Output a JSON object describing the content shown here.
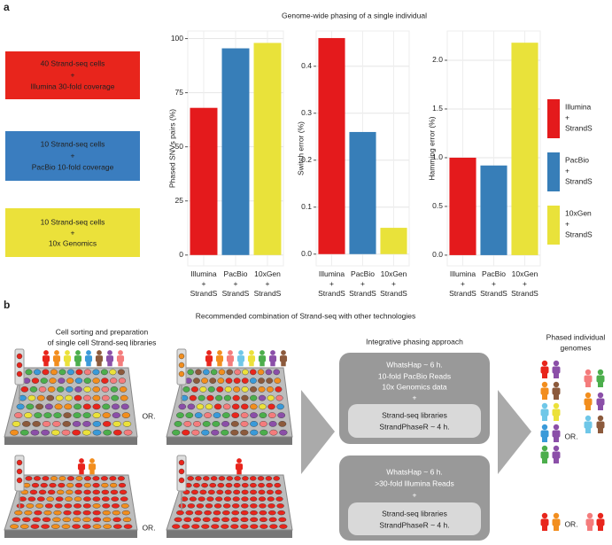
{
  "panel_a": {
    "label": "a",
    "title": "Genome-wide phasing of a single individual",
    "boxes": [
      [
        "40 Strand-seq cells",
        "+",
        "Illumina 30-fold coverage"
      ],
      [
        "10 Strand-seq cells",
        "+",
        "PacBio 10-fold coverage"
      ],
      [
        "10 Strand-seq cells",
        "+",
        "10x Genomics"
      ]
    ]
  },
  "chart_data": [
    {
      "type": "bar",
      "ylabel": "Phased SNVs pairs (%)",
      "categories": [
        [
          "Illumina",
          "+",
          "StrandS"
        ],
        [
          "PacBio",
          "+",
          "StrandS"
        ],
        [
          "10xGen",
          "+",
          "StrandS"
        ]
      ],
      "values": [
        68,
        95.5,
        98
      ],
      "colors": [
        "#e41a1c",
        "#377eb8",
        "#e9e23a"
      ],
      "ylim": [
        -5,
        103.5
      ],
      "yticks": [
        0,
        25,
        50,
        75,
        100
      ],
      "grid": true
    },
    {
      "type": "bar",
      "ylabel": "Switch error (%)",
      "categories": [
        [
          "Illumina",
          "+",
          "StrandS"
        ],
        [
          "PacBio",
          "+",
          "StrandS"
        ],
        [
          "10xGen",
          "+",
          "StrandS"
        ]
      ],
      "values": [
        0.46,
        0.26,
        0.056
      ],
      "colors": [
        "#e41a1c",
        "#377eb8",
        "#e9e23a"
      ],
      "ylim": [
        -0.025,
        0.475
      ],
      "yticks": [
        {
          "value": 0,
          "label": "0.0"
        },
        0.1,
        0.2,
        0.3,
        0.4
      ],
      "grid": true
    },
    {
      "type": "bar",
      "ylabel": "Hamming error (%)",
      "categories": [
        [
          "Illumina",
          "+",
          "StrandS"
        ],
        [
          "PacBio",
          "+",
          "StrandS"
        ],
        [
          "10xGen",
          "+",
          "StrandS"
        ]
      ],
      "values": [
        1.0,
        0.92,
        2.18
      ],
      "colors": [
        "#e41a1c",
        "#377eb8",
        "#e9e23a"
      ],
      "ylim": [
        -0.11,
        2.3
      ],
      "yticks": [
        {
          "value": 0,
          "label": "0.0"
        },
        0.5,
        {
          "value": 1,
          "label": "1.0"
        },
        1.5,
        {
          "value": 2,
          "label": "2.0"
        }
      ],
      "grid": true,
      "legend": "right"
    }
  ],
  "panel_b": {
    "label": "b",
    "title": "Recommended combination of Strand-seq with other technologies",
    "left_heading": [
      "Cell sorting and preparation",
      "of single cell Strand-seq libraries"
    ],
    "or_labels": [
      "OR.",
      "OR.",
      "OR.",
      "OR."
    ],
    "middle_heading": "Integrative phasing approach",
    "approach_1": [
      "WhatsHap ~ 6 h.",
      "10-fold PacBio Reads",
      "10x Genomics data",
      "+"
    ],
    "approach_1_inner": [
      "Strand-seq libraries",
      "StrandPhaseR ~ 4 h."
    ],
    "approach_2": [
      "WhatsHap ~ 6 h.",
      ">30-fold Illumina Reads",
      "+"
    ],
    "approach_2_inner": [
      "Strand-seq libraries",
      "StrandPhaseR ~ 4 h."
    ],
    "right_heading": [
      "Phased individual",
      "genomes"
    ]
  }
}
